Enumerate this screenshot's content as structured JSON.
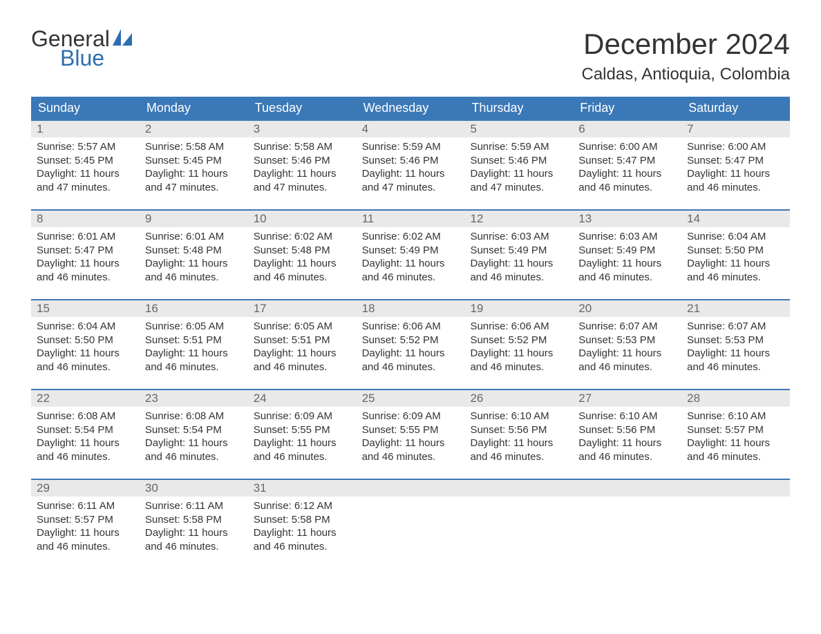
{
  "logo": {
    "word1": "General",
    "word2": "Blue",
    "icon_color": "#2c6fb0"
  },
  "title": "December 2024",
  "location": "Caldas, Antioquia, Colombia",
  "colors": {
    "header_bg": "#3b78b7",
    "header_text": "#ffffff",
    "daynum_bg": "#e9e9e9",
    "daynum_text": "#666666",
    "body_text": "#333333",
    "row_border": "#3b78b7",
    "page_bg": "#ffffff"
  },
  "weekdays": [
    "Sunday",
    "Monday",
    "Tuesday",
    "Wednesday",
    "Thursday",
    "Friday",
    "Saturday"
  ],
  "weeks": [
    [
      {
        "day": "1",
        "sunrise": "5:57 AM",
        "sunset": "5:45 PM",
        "daylight": "11 hours and 47 minutes."
      },
      {
        "day": "2",
        "sunrise": "5:58 AM",
        "sunset": "5:45 PM",
        "daylight": "11 hours and 47 minutes."
      },
      {
        "day": "3",
        "sunrise": "5:58 AM",
        "sunset": "5:46 PM",
        "daylight": "11 hours and 47 minutes."
      },
      {
        "day": "4",
        "sunrise": "5:59 AM",
        "sunset": "5:46 PM",
        "daylight": "11 hours and 47 minutes."
      },
      {
        "day": "5",
        "sunrise": "5:59 AM",
        "sunset": "5:46 PM",
        "daylight": "11 hours and 47 minutes."
      },
      {
        "day": "6",
        "sunrise": "6:00 AM",
        "sunset": "5:47 PM",
        "daylight": "11 hours and 46 minutes."
      },
      {
        "day": "7",
        "sunrise": "6:00 AM",
        "sunset": "5:47 PM",
        "daylight": "11 hours and 46 minutes."
      }
    ],
    [
      {
        "day": "8",
        "sunrise": "6:01 AM",
        "sunset": "5:47 PM",
        "daylight": "11 hours and 46 minutes."
      },
      {
        "day": "9",
        "sunrise": "6:01 AM",
        "sunset": "5:48 PM",
        "daylight": "11 hours and 46 minutes."
      },
      {
        "day": "10",
        "sunrise": "6:02 AM",
        "sunset": "5:48 PM",
        "daylight": "11 hours and 46 minutes."
      },
      {
        "day": "11",
        "sunrise": "6:02 AM",
        "sunset": "5:49 PM",
        "daylight": "11 hours and 46 minutes."
      },
      {
        "day": "12",
        "sunrise": "6:03 AM",
        "sunset": "5:49 PM",
        "daylight": "11 hours and 46 minutes."
      },
      {
        "day": "13",
        "sunrise": "6:03 AM",
        "sunset": "5:49 PM",
        "daylight": "11 hours and 46 minutes."
      },
      {
        "day": "14",
        "sunrise": "6:04 AM",
        "sunset": "5:50 PM",
        "daylight": "11 hours and 46 minutes."
      }
    ],
    [
      {
        "day": "15",
        "sunrise": "6:04 AM",
        "sunset": "5:50 PM",
        "daylight": "11 hours and 46 minutes."
      },
      {
        "day": "16",
        "sunrise": "6:05 AM",
        "sunset": "5:51 PM",
        "daylight": "11 hours and 46 minutes."
      },
      {
        "day": "17",
        "sunrise": "6:05 AM",
        "sunset": "5:51 PM",
        "daylight": "11 hours and 46 minutes."
      },
      {
        "day": "18",
        "sunrise": "6:06 AM",
        "sunset": "5:52 PM",
        "daylight": "11 hours and 46 minutes."
      },
      {
        "day": "19",
        "sunrise": "6:06 AM",
        "sunset": "5:52 PM",
        "daylight": "11 hours and 46 minutes."
      },
      {
        "day": "20",
        "sunrise": "6:07 AM",
        "sunset": "5:53 PM",
        "daylight": "11 hours and 46 minutes."
      },
      {
        "day": "21",
        "sunrise": "6:07 AM",
        "sunset": "5:53 PM",
        "daylight": "11 hours and 46 minutes."
      }
    ],
    [
      {
        "day": "22",
        "sunrise": "6:08 AM",
        "sunset": "5:54 PM",
        "daylight": "11 hours and 46 minutes."
      },
      {
        "day": "23",
        "sunrise": "6:08 AM",
        "sunset": "5:54 PM",
        "daylight": "11 hours and 46 minutes."
      },
      {
        "day": "24",
        "sunrise": "6:09 AM",
        "sunset": "5:55 PM",
        "daylight": "11 hours and 46 minutes."
      },
      {
        "day": "25",
        "sunrise": "6:09 AM",
        "sunset": "5:55 PM",
        "daylight": "11 hours and 46 minutes."
      },
      {
        "day": "26",
        "sunrise": "6:10 AM",
        "sunset": "5:56 PM",
        "daylight": "11 hours and 46 minutes."
      },
      {
        "day": "27",
        "sunrise": "6:10 AM",
        "sunset": "5:56 PM",
        "daylight": "11 hours and 46 minutes."
      },
      {
        "day": "28",
        "sunrise": "6:10 AM",
        "sunset": "5:57 PM",
        "daylight": "11 hours and 46 minutes."
      }
    ],
    [
      {
        "day": "29",
        "sunrise": "6:11 AM",
        "sunset": "5:57 PM",
        "daylight": "11 hours and 46 minutes."
      },
      {
        "day": "30",
        "sunrise": "6:11 AM",
        "sunset": "5:58 PM",
        "daylight": "11 hours and 46 minutes."
      },
      {
        "day": "31",
        "sunrise": "6:12 AM",
        "sunset": "5:58 PM",
        "daylight": "11 hours and 46 minutes."
      },
      {
        "day": "",
        "sunrise": "",
        "sunset": "",
        "daylight": ""
      },
      {
        "day": "",
        "sunrise": "",
        "sunset": "",
        "daylight": ""
      },
      {
        "day": "",
        "sunrise": "",
        "sunset": "",
        "daylight": ""
      },
      {
        "day": "",
        "sunrise": "",
        "sunset": "",
        "daylight": ""
      }
    ]
  ],
  "labels": {
    "sunrise": "Sunrise: ",
    "sunset": "Sunset: ",
    "daylight": "Daylight: "
  },
  "fonts": {
    "title_pt": 42,
    "location_pt": 24,
    "header_pt": 18,
    "daynum_pt": 17,
    "body_pt": 15
  }
}
